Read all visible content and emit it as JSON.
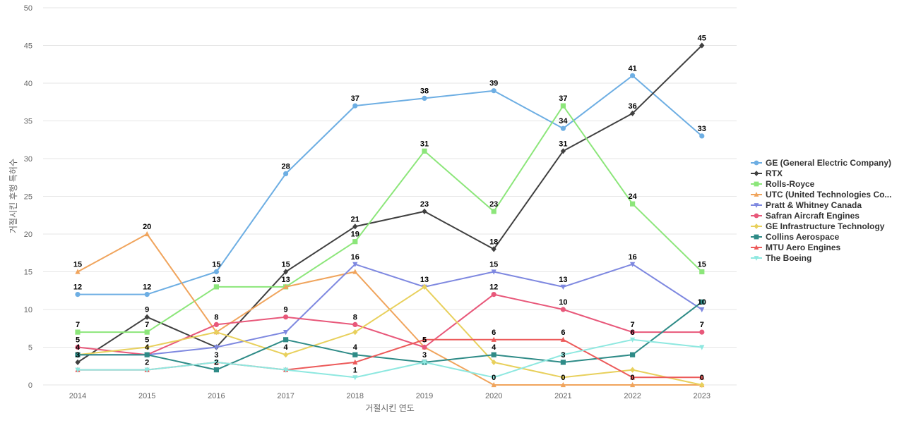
{
  "chart_data": {
    "type": "line",
    "title": "",
    "xlabel": "거절시킨 연도",
    "ylabel": "거절시킨 후행 특허수",
    "x": [
      "2014",
      "2015",
      "2016",
      "2017",
      "2018",
      "2019",
      "2020",
      "2021",
      "2022",
      "2023"
    ],
    "ylim": [
      0,
      50
    ],
    "yticks": [
      0,
      5,
      10,
      15,
      20,
      25,
      30,
      35,
      40,
      45,
      50
    ],
    "grid": true,
    "legend_position": "right",
    "series": [
      {
        "name": "GE (General Electric Company)",
        "color": "#6daee3",
        "marker": "circle",
        "values": [
          12,
          12,
          15,
          28,
          37,
          38,
          39,
          34,
          41,
          33
        ]
      },
      {
        "name": "RTX",
        "color": "#404040",
        "marker": "diamond",
        "values": [
          3,
          9,
          5,
          15,
          21,
          23,
          18,
          31,
          36,
          45
        ]
      },
      {
        "name": "Rolls-Royce",
        "color": "#8ce67a",
        "marker": "square",
        "values": [
          7,
          7,
          13,
          13,
          19,
          31,
          23,
          37,
          24,
          15
        ]
      },
      {
        "name": "UTC (United Technologies Co...",
        "color": "#f0a45c",
        "marker": "triangle-up",
        "values": [
          15,
          20,
          7,
          13,
          15,
          5,
          0,
          0,
          0,
          0
        ]
      },
      {
        "name": "Pratt & Whitney Canada",
        "color": "#7e88e0",
        "marker": "triangle-down",
        "values": [
          4,
          4,
          5,
          7,
          16,
          13,
          15,
          13,
          16,
          10
        ]
      },
      {
        "name": "Safran Aircraft Engines",
        "color": "#e8587a",
        "marker": "circle",
        "values": [
          5,
          4,
          8,
          9,
          8,
          5,
          12,
          10,
          7,
          7
        ]
      },
      {
        "name": "GE Infrastructure Technology",
        "color": "#e8d05c",
        "marker": "diamond",
        "values": [
          4,
          5,
          7,
          4,
          7,
          13,
          3,
          1,
          2,
          0
        ]
      },
      {
        "name": "Collins Aerospace",
        "color": "#2e8b87",
        "marker": "square",
        "values": [
          4,
          4,
          2,
          6,
          4,
          3,
          4,
          3,
          4,
          11
        ]
      },
      {
        "name": "MTU Aero Engines",
        "color": "#ec5a5a",
        "marker": "triangle-up",
        "values": [
          2,
          2,
          3,
          2,
          3,
          6,
          6,
          6,
          1,
          1
        ]
      },
      {
        "name": "The Boeing",
        "color": "#8ee8e0",
        "marker": "triangle-down",
        "values": [
          2,
          2,
          3,
          2,
          1,
          3,
          1,
          4,
          6,
          5
        ]
      }
    ],
    "data_labels": [
      {
        "series": 0,
        "indices": [
          0,
          1,
          2,
          3,
          4,
          5,
          6,
          7,
          8,
          9
        ]
      },
      {
        "series": 1,
        "indices": [
          0,
          1,
          3,
          4,
          5,
          6,
          7,
          8,
          9
        ]
      },
      {
        "series": 2,
        "indices": [
          0,
          1,
          2,
          3,
          4,
          5,
          6,
          7,
          8,
          9
        ]
      },
      {
        "series": 3,
        "indices": [
          0,
          1,
          6,
          7,
          8,
          9
        ]
      },
      {
        "series": 4,
        "indices": [
          4,
          6,
          7,
          8,
          9
        ]
      },
      {
        "series": 5,
        "indices": [
          0,
          2,
          3,
          4,
          5,
          6,
          7,
          8,
          9
        ]
      },
      {
        "series": 6,
        "indices": [
          1,
          3,
          5
        ]
      },
      {
        "series": 7,
        "indices": [
          0,
          1,
          2,
          4,
          5,
          6,
          7
        ]
      },
      {
        "series": 8,
        "indices": [
          6,
          7
        ]
      },
      {
        "series": 9,
        "indices": [
          1,
          2,
          4,
          8
        ]
      }
    ]
  }
}
